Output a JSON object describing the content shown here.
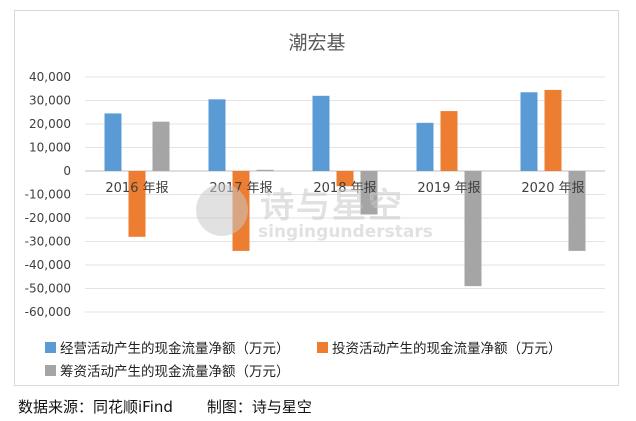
{
  "chart_data": {
    "type": "bar",
    "title": "潮宏基",
    "categories": [
      "2016 年报",
      "2017 年报",
      "2018 年报",
      "2019 年报",
      "2020 年报"
    ],
    "ylim": [
      -60000,
      40000
    ],
    "yticks": [
      40000,
      30000,
      20000,
      10000,
      0,
      -10000,
      -20000,
      -30000,
      -40000,
      -50000,
      -60000
    ],
    "ytick_labels": [
      "40,000",
      "30,000",
      "20,000",
      "10,000",
      "0",
      "-10,000",
      "-20,000",
      "-30,000",
      "-40,000",
      "-50,000",
      "-60,000"
    ],
    "grid": true,
    "legend_position": "bottom",
    "series": [
      {
        "name": "经营活动产生的现金流量净额（万元）",
        "color": "#5b9bd5",
        "values": [
          24500,
          30500,
          32000,
          20500,
          33500
        ]
      },
      {
        "name": "投资活动产生的现金流量净额（万元）",
        "color": "#ed7d31",
        "values": [
          -28000,
          -34000,
          -6500,
          25500,
          34500
        ]
      },
      {
        "name": "筹资活动产生的现金流量净额（万元）",
        "color": "#a5a5a5",
        "values": [
          21000,
          500,
          -18500,
          -49000,
          -34000
        ]
      }
    ]
  },
  "footer": {
    "source": "数据来源：同花顺iFind",
    "credit": "制图：诗与星空"
  },
  "watermark": {
    "mark": "诗与星空",
    "latin": "singingunderstars"
  }
}
